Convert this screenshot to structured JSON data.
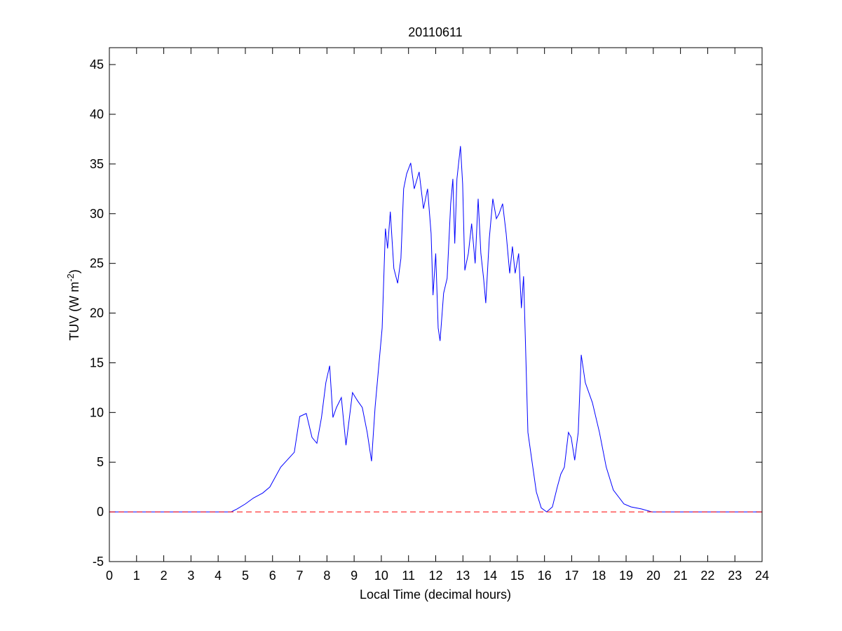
{
  "chart_data": {
    "type": "line",
    "title": "20110611",
    "xlabel": "Local Time (decimal hours)",
    "ylabel": [
      "TUV (W m",
      "-2",
      ")"
    ],
    "xlim": [
      0,
      24
    ],
    "ylim": [
      -5,
      46.7
    ],
    "xticks": [
      0,
      1,
      2,
      3,
      4,
      5,
      6,
      7,
      8,
      9,
      10,
      11,
      12,
      13,
      14,
      15,
      16,
      17,
      18,
      19,
      20,
      21,
      22,
      23,
      24
    ],
    "yticks": [
      -5,
      0,
      5,
      10,
      15,
      20,
      25,
      30,
      35,
      40,
      45
    ],
    "series": [
      {
        "color": "#0000ff",
        "dash": "solid",
        "x": [
          0,
          4.48,
          4.7,
          5.0,
          5.3,
          5.64,
          5.9,
          6.3,
          6.8,
          7.0,
          7.24,
          7.45,
          7.63,
          7.8,
          7.96,
          8.1,
          8.22,
          8.35,
          8.53,
          8.7,
          8.94,
          9.12,
          9.3,
          9.48,
          9.64,
          9.77,
          9.9,
          10.03,
          10.15,
          10.23,
          10.33,
          10.46,
          10.6,
          10.72,
          10.82,
          10.93,
          11.08,
          11.21,
          11.39,
          11.55,
          11.7,
          11.83,
          11.9,
          12.0,
          12.09,
          12.16,
          12.29,
          12.42,
          12.55,
          12.63,
          12.7,
          12.78,
          12.91,
          12.99,
          13.07,
          13.2,
          13.32,
          13.45,
          13.56,
          13.66,
          13.76,
          13.84,
          13.97,
          14.1,
          14.23,
          14.33,
          14.46,
          14.59,
          14.72,
          14.82,
          14.92,
          15.05,
          15.15,
          15.23,
          15.3,
          15.39,
          15.57,
          15.7,
          15.88,
          16.08,
          16.29,
          16.47,
          16.6,
          16.73,
          16.88,
          16.98,
          17.11,
          17.24,
          17.35,
          17.5,
          17.76,
          18.02,
          18.27,
          18.53,
          18.92,
          19.18,
          19.56,
          19.95,
          24
        ],
        "values": [
          0,
          0,
          0.3,
          0.8,
          1.4,
          1.9,
          2.5,
          4.5,
          6.0,
          9.6,
          9.9,
          7.5,
          6.9,
          9.5,
          13,
          14.7,
          9.5,
          10.5,
          11.5,
          6.7,
          12,
          11.2,
          10.5,
          8,
          5.1,
          10.5,
          14.5,
          18.5,
          28.5,
          26.5,
          30.2,
          24.5,
          23,
          25.5,
          32.5,
          34,
          35.1,
          32.5,
          34.2,
          30.5,
          32.5,
          28,
          21.8,
          26,
          18.5,
          17.2,
          22,
          23.5,
          31,
          33.5,
          27,
          33.5,
          36.8,
          33,
          24.3,
          26,
          29,
          25,
          31.5,
          26,
          23.5,
          21,
          27.5,
          31.5,
          29.5,
          30,
          31,
          28,
          24,
          26.7,
          24,
          26,
          20.5,
          23.7,
          17,
          8,
          4.5,
          2,
          0.4,
          0,
          0.5,
          2.5,
          3.8,
          4.5,
          8,
          7.5,
          5.2,
          8,
          15.8,
          13,
          11,
          8,
          4.5,
          2.2,
          0.8,
          0.5,
          0.3,
          0,
          0
        ]
      },
      {
        "color": "#ff0000",
        "dash": "dashed",
        "x": [
          0,
          24
        ],
        "values": [
          0,
          0
        ]
      }
    ]
  }
}
